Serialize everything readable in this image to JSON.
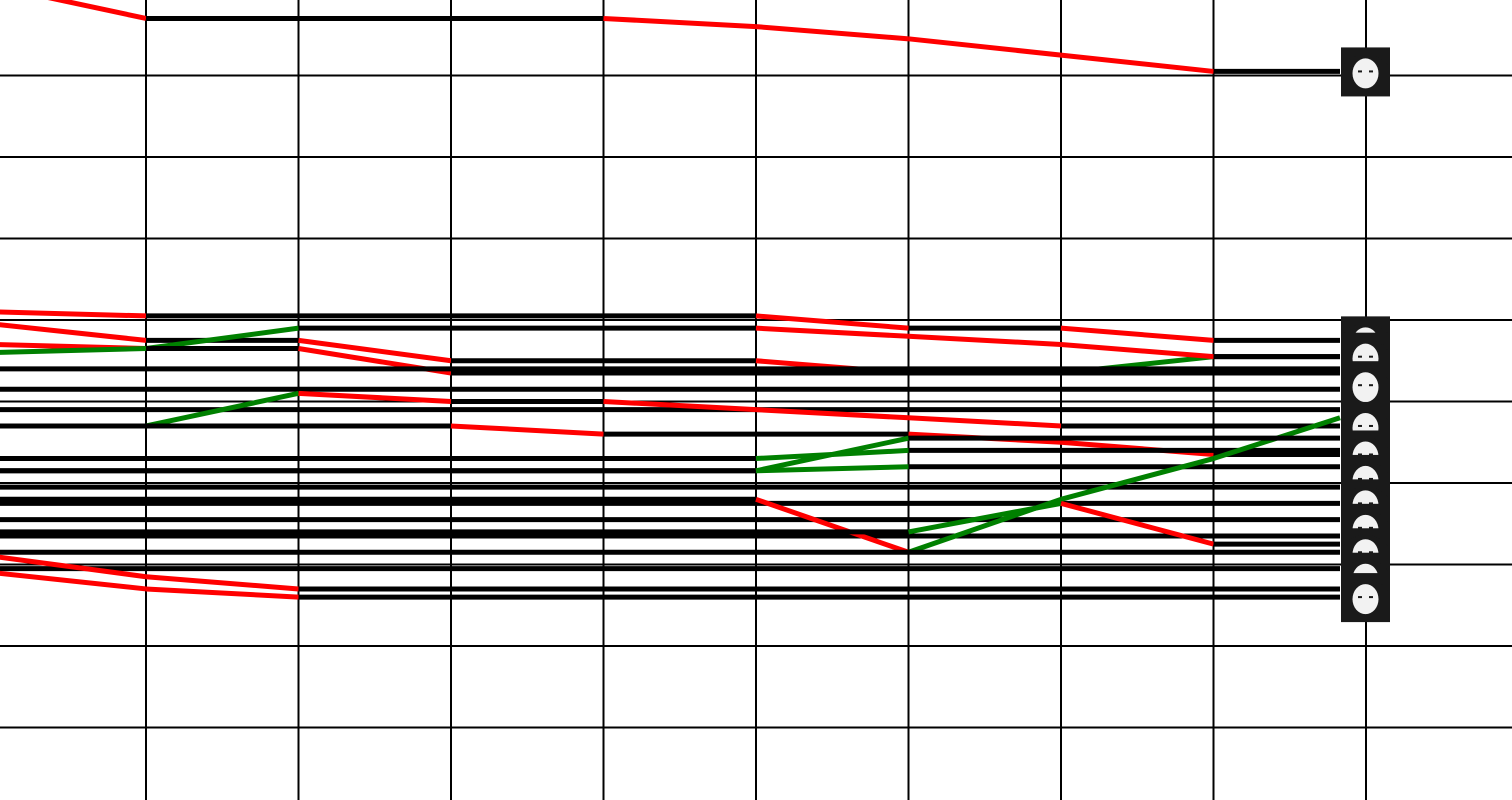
{
  "chart_data": {
    "type": "line",
    "title": "",
    "xlabel": "",
    "ylabel": "",
    "grid": true,
    "x": [
      0,
      1,
      2,
      3,
      4,
      5,
      6,
      7,
      8,
      9
    ],
    "y_unit_note": "",
    "colors": {
      "up": "#008000",
      "down": "#ff0000",
      "flat": "#000000",
      "grid": "#000000",
      "avatar_bg": "#1a1a1a",
      "avatar_face": "#f2f2f2"
    },
    "icon": "player-avatar",
    "series": [
      {
        "values": [
          -0.1,
          0.3,
          0.3,
          0.3,
          0.3,
          0.4,
          0.55,
          0.75,
          0.95,
          0.95
        ]
      },
      {
        "values": [
          3.9,
          3.95,
          3.95,
          3.95,
          3.95,
          3.95,
          4.1,
          4.1,
          4.25,
          4.25
        ]
      },
      {
        "values": [
          4.05,
          4.25,
          4.25,
          4.5,
          4.5,
          4.5,
          4.65,
          4.65,
          4.45,
          4.45
        ]
      },
      {
        "values": [
          4.3,
          4.35,
          4.1,
          4.1,
          4.1,
          4.1,
          4.2,
          4.3,
          4.45,
          4.45
        ]
      },
      {
        "values": [
          4.4,
          4.35,
          4.35,
          4.65,
          4.65,
          4.65,
          4.65,
          4.65,
          4.65,
          4.65
        ]
      },
      {
        "values": [
          4.6,
          4.6,
          4.6,
          4.6,
          4.6,
          4.6,
          4.6,
          4.6,
          4.6,
          4.6
        ]
      },
      {
        "values": [
          4.85,
          4.85,
          4.85,
          4.85,
          4.85,
          4.85,
          4.85,
          4.85,
          4.85,
          4.85
        ]
      },
      {
        "values": [
          5.1,
          5.1,
          5.1,
          5.1,
          5.1,
          5.1,
          5.1,
          5.1,
          5.1,
          5.1
        ]
      },
      {
        "values": [
          5.3,
          5.3,
          4.9,
          5.0,
          5.0,
          5.1,
          5.2,
          5.3,
          5.3,
          5.3
        ]
      },
      {
        "values": [
          5.3,
          5.3,
          5.3,
          5.3,
          5.4,
          5.4,
          5.4,
          5.5,
          5.65,
          5.65
        ]
      },
      {
        "values": [
          5.7,
          5.7,
          5.7,
          5.7,
          5.7,
          5.7,
          5.6,
          5.6,
          5.6,
          5.6
        ]
      },
      {
        "values": [
          5.85,
          5.85,
          5.85,
          5.85,
          5.85,
          5.85,
          5.8,
          5.8,
          5.8,
          5.8
        ]
      },
      {
        "values": [
          6.05,
          6.05,
          6.05,
          6.05,
          6.05,
          6.05,
          6.05,
          6.05,
          6.05,
          6.05
        ]
      },
      {
        "values": [
          6.25,
          6.25,
          6.25,
          6.25,
          6.25,
          6.25,
          6.25,
          6.25,
          6.25,
          6.25
        ]
      },
      {
        "values": [
          6.45,
          6.45,
          6.45,
          6.45,
          6.45,
          6.45,
          6.45,
          6.45,
          6.45,
          6.45
        ]
      },
      {
        "values": [
          6.65,
          6.65,
          6.65,
          6.65,
          6.65,
          6.65,
          6.65,
          6.65,
          6.65,
          6.65
        ]
      },
      {
        "values": [
          6.2,
          6.2,
          6.2,
          6.2,
          6.2,
          6.2,
          6.85,
          6.2,
          5.7,
          5.2
        ]
      },
      {
        "values": [
          6.85,
          6.85,
          6.85,
          6.85,
          6.85,
          6.85,
          6.85,
          6.85,
          6.85,
          6.85
        ]
      },
      {
        "values": [
          7.05,
          7.05,
          7.05,
          7.05,
          7.05,
          7.05,
          7.05,
          7.05,
          7.05,
          7.05
        ]
      },
      {
        "values": [
          6.9,
          7.15,
          7.3,
          7.3,
          7.3,
          7.3,
          7.3,
          7.3,
          7.3,
          7.3
        ]
      },
      {
        "values": [
          7.1,
          7.3,
          7.4,
          7.4,
          7.4,
          7.4,
          7.4,
          7.4,
          7.4,
          7.4
        ]
      },
      {
        "values": [
          6.6,
          6.6,
          6.6,
          6.6,
          6.6,
          6.6,
          6.6,
          6.25,
          6.75,
          6.75
        ]
      },
      {
        "values": [
          5.85,
          5.85,
          5.85,
          5.85,
          5.85,
          5.85,
          5.45,
          5.45,
          5.45,
          5.45
        ]
      }
    ],
    "avatar_values": [
      0.95,
      4.25,
      4.45,
      4.8,
      5.3,
      5.65,
      5.95,
      6.25,
      6.55,
      6.85,
      7.15,
      7.4
    ]
  }
}
